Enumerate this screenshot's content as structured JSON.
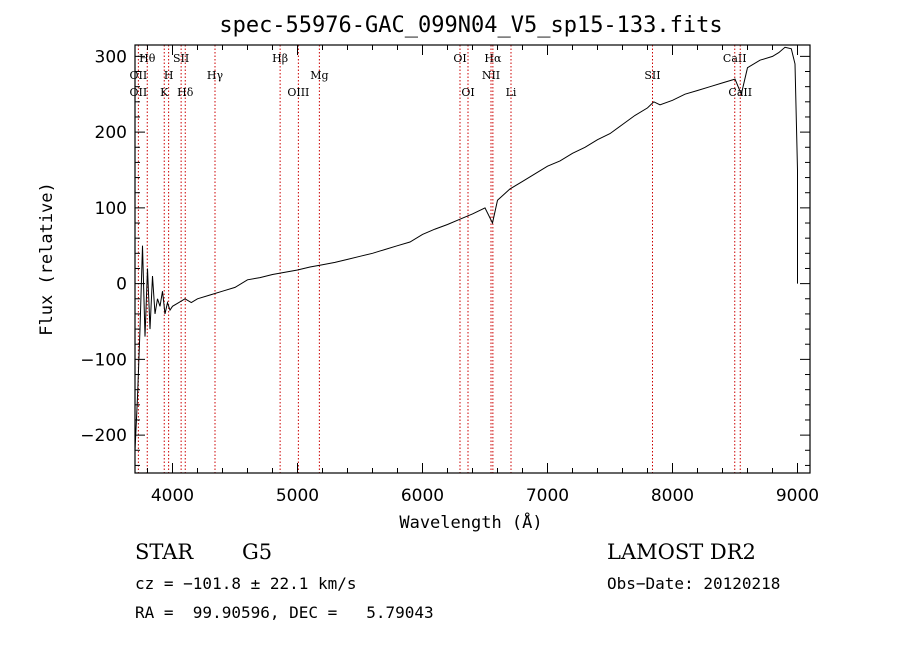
{
  "chart_data": {
    "type": "line",
    "title": "spec-55976-GAC_099N04_V5_sp15-133.fits",
    "xlabel": "Wavelength (Å)",
    "ylabel": "Flux (relative)",
    "xlim": [
      3700,
      9100
    ],
    "ylim": [
      -250,
      315
    ],
    "xticks": [
      4000,
      5000,
      6000,
      7000,
      8000,
      9000
    ],
    "yticks": [
      -200,
      -100,
      0,
      100,
      200,
      300
    ],
    "grid": false,
    "series": [
      {
        "points": [
          [
            3700,
            -220
          ],
          [
            3720,
            -150
          ],
          [
            3740,
            -60
          ],
          [
            3760,
            50
          ],
          [
            3780,
            -70
          ],
          [
            3800,
            20
          ],
          [
            3820,
            -60
          ],
          [
            3840,
            10
          ],
          [
            3860,
            -40
          ],
          [
            3880,
            -20
          ],
          [
            3900,
            -30
          ],
          [
            3920,
            -10
          ],
          [
            3940,
            -40
          ],
          [
            3960,
            -25
          ],
          [
            3980,
            -35
          ],
          [
            4000,
            -30
          ],
          [
            4050,
            -25
          ],
          [
            4100,
            -20
          ],
          [
            4150,
            -25
          ],
          [
            4200,
            -20
          ],
          [
            4300,
            -15
          ],
          [
            4400,
            -10
          ],
          [
            4500,
            -5
          ],
          [
            4600,
            5
          ],
          [
            4700,
            8
          ],
          [
            4800,
            12
          ],
          [
            4900,
            15
          ],
          [
            5000,
            18
          ],
          [
            5100,
            22
          ],
          [
            5200,
            25
          ],
          [
            5300,
            28
          ],
          [
            5400,
            32
          ],
          [
            5500,
            36
          ],
          [
            5600,
            40
          ],
          [
            5700,
            45
          ],
          [
            5800,
            50
          ],
          [
            5900,
            55
          ],
          [
            6000,
            65
          ],
          [
            6100,
            72
          ],
          [
            6200,
            78
          ],
          [
            6300,
            85
          ],
          [
            6400,
            92
          ],
          [
            6500,
            100
          ],
          [
            6560,
            80
          ],
          [
            6600,
            110
          ],
          [
            6700,
            125
          ],
          [
            6800,
            135
          ],
          [
            6900,
            145
          ],
          [
            7000,
            155
          ],
          [
            7100,
            162
          ],
          [
            7200,
            172
          ],
          [
            7300,
            180
          ],
          [
            7400,
            190
          ],
          [
            7500,
            198
          ],
          [
            7600,
            210
          ],
          [
            7700,
            222
          ],
          [
            7800,
            232
          ],
          [
            7850,
            240
          ],
          [
            7900,
            236
          ],
          [
            8000,
            242
          ],
          [
            8100,
            250
          ],
          [
            8200,
            255
          ],
          [
            8300,
            260
          ],
          [
            8400,
            265
          ],
          [
            8500,
            270
          ],
          [
            8550,
            250
          ],
          [
            8600,
            285
          ],
          [
            8700,
            295
          ],
          [
            8800,
            300
          ],
          [
            8850,
            305
          ],
          [
            8900,
            312
          ],
          [
            8950,
            310
          ],
          [
            8980,
            290
          ],
          [
            9000,
            150
          ],
          [
            9000,
            0
          ]
        ]
      }
    ],
    "lines": [
      {
        "label": "Hθ",
        "wl": 3798,
        "row": 1
      },
      {
        "label": "OII",
        "wl": 3727,
        "row": 2
      },
      {
        "label": "OII",
        "wl": 3727,
        "row": 3
      },
      {
        "label": "H",
        "wl": 3969,
        "row": 2
      },
      {
        "label": "K",
        "wl": 3934,
        "row": 3
      },
      {
        "label": "SII",
        "wl": 4069,
        "row": 1
      },
      {
        "label": "Hδ",
        "wl": 4102,
        "row": 3
      },
      {
        "label": "Hγ",
        "wl": 4340,
        "row": 2
      },
      {
        "label": "Hβ",
        "wl": 4861,
        "row": 1
      },
      {
        "label": "OIII",
        "wl": 5007,
        "row": 3
      },
      {
        "label": "Mg",
        "wl": 5175,
        "row": 2
      },
      {
        "label": "OI",
        "wl": 6300,
        "row": 1
      },
      {
        "label": "OI",
        "wl": 6364,
        "row": 3
      },
      {
        "label": "Hα",
        "wl": 6563,
        "row": 1
      },
      {
        "label": "NII",
        "wl": 6548,
        "row": 2
      },
      {
        "label": "Li",
        "wl": 6708,
        "row": 3
      },
      {
        "label": "SII",
        "wl": 7840,
        "row": 2
      },
      {
        "label": "CaII",
        "wl": 8498,
        "row": 1
      },
      {
        "label": "CaII",
        "wl": 8542,
        "row": 3
      }
    ],
    "line_color": "#cc0000"
  },
  "info": {
    "class": "STAR",
    "subclass": "G5",
    "survey": "LAMOST DR2",
    "cz": "cz = −101.8 ± 22.1 km/s",
    "obs_date": "Obs−Date: 20120218",
    "radec": "RA =  99.90596, DEC =   5.79043"
  }
}
